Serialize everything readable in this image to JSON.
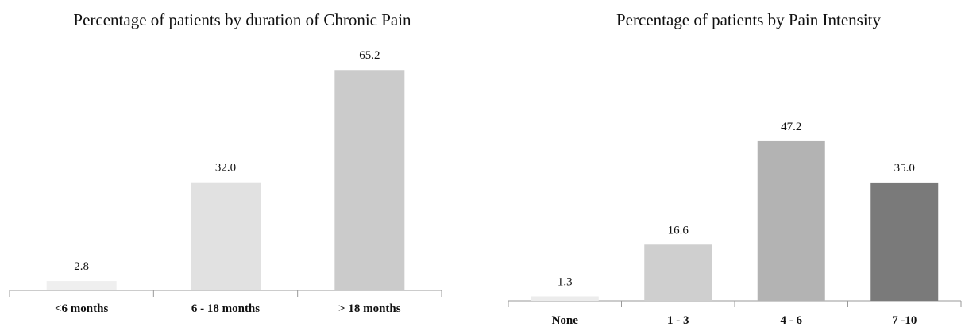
{
  "chart_data": [
    {
      "type": "bar",
      "title": "Percentage of patients by duration of Chronic Pain",
      "categories": [
        "<6 months",
        "6 - 18 months",
        "> 18 months"
      ],
      "values": [
        2.8,
        32.0,
        65.2
      ],
      "value_labels": [
        "2.8",
        "32.0",
        "65.2"
      ],
      "colors": [
        "#efefef",
        "#e1e1e1",
        "#cbcbcb"
      ],
      "xlabel": "",
      "ylabel": "",
      "ylim": [
        0,
        70
      ],
      "grid": false,
      "legend": "none"
    },
    {
      "type": "bar",
      "title": "Percentage of patients by Pain Intensity",
      "categories": [
        "None",
        "1 - 3",
        "4 - 6",
        "7 -10"
      ],
      "values": [
        1.3,
        16.6,
        47.2,
        35.0
      ],
      "value_labels": [
        "1.3",
        "16.6",
        "47.2",
        "35.0"
      ],
      "colors": [
        "#ececec",
        "#cfcfcf",
        "#b3b3b3",
        "#7a7a7a"
      ],
      "xlabel": "",
      "ylabel": "",
      "ylim": [
        0,
        70
      ],
      "grid": false,
      "legend": "none"
    }
  ]
}
